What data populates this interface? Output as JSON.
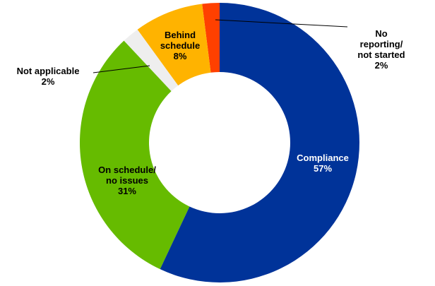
{
  "chart_data": {
    "type": "donut",
    "categories": [
      "Compliance",
      "On schedule/\nno issues",
      "Not applicable",
      "Behind\nschedule",
      "No reporting/\nnot started"
    ],
    "values": [
      57,
      31,
      2,
      8,
      2
    ],
    "value_labels": [
      "57%",
      "31%",
      "2%",
      "8%",
      "2%"
    ],
    "colors": [
      "#003399",
      "#66bb00",
      "#eeeeee",
      "#ffb300",
      "#ff4000"
    ]
  }
}
